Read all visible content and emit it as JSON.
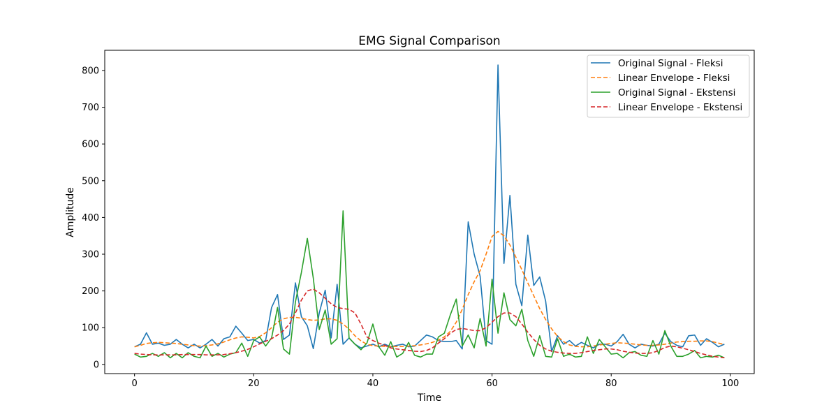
{
  "chart_data": {
    "type": "line",
    "title": "EMG Signal Comparison",
    "xlabel": "Time",
    "ylabel": "Amplitude",
    "xlim": [
      -5,
      104
    ],
    "ylim": [
      -25,
      855
    ],
    "xticks": [
      0,
      20,
      40,
      60,
      80,
      100
    ],
    "yticks": [
      0,
      100,
      200,
      300,
      400,
      500,
      600,
      700,
      800
    ],
    "grid": false,
    "legend_position": "top-right",
    "x": [
      0,
      1,
      2,
      3,
      4,
      5,
      6,
      7,
      8,
      9,
      10,
      11,
      12,
      13,
      14,
      15,
      16,
      17,
      18,
      19,
      20,
      21,
      22,
      23,
      24,
      25,
      26,
      27,
      28,
      29,
      30,
      31,
      32,
      33,
      34,
      35,
      36,
      37,
      38,
      39,
      40,
      41,
      42,
      43,
      44,
      45,
      46,
      47,
      48,
      49,
      50,
      51,
      52,
      53,
      54,
      55,
      56,
      57,
      58,
      59,
      60,
      61,
      62,
      63,
      64,
      65,
      66,
      67,
      68,
      69,
      70,
      71,
      72,
      73,
      74,
      75,
      76,
      77,
      78,
      79,
      80,
      81,
      82,
      83,
      84,
      85,
      86,
      87,
      88,
      89,
      90,
      91,
      92,
      93,
      94,
      95,
      96,
      97,
      98,
      99
    ],
    "series": [
      {
        "name": "Original Signal - Fleksi",
        "color": "#1f77b4",
        "style": "solid",
        "values": [
          48,
          55,
          86,
          55,
          58,
          52,
          55,
          68,
          55,
          45,
          55,
          45,
          55,
          68,
          50,
          70,
          75,
          104,
          85,
          65,
          68,
          58,
          65,
          155,
          190,
          68,
          80,
          222,
          130,
          105,
          43,
          140,
          202,
          72,
          218,
          55,
          72,
          55,
          45,
          50,
          55,
          48,
          55,
          48,
          52,
          55,
          48,
          50,
          65,
          80,
          75,
          65,
          62,
          62,
          65,
          42,
          388,
          300,
          240,
          65,
          55,
          815,
          275,
          460,
          218,
          160,
          352,
          215,
          238,
          172,
          35,
          78,
          55,
          65,
          50,
          60,
          52,
          45,
          55,
          55,
          50,
          62,
          82,
          55,
          45,
          55,
          52,
          50,
          55,
          85,
          62,
          52,
          48,
          78,
          80,
          52,
          70,
          60,
          48,
          55
        ]
      },
      {
        "name": "Linear Envelope - Fleksi",
        "color": "#ff7f0e",
        "style": "dashed",
        "values": [
          48,
          52,
          57,
          59,
          60,
          59,
          58,
          57,
          55,
          53,
          51,
          50,
          51,
          53,
          56,
          61,
          67,
          72,
          75,
          74,
          72,
          76,
          86,
          100,
          115,
          124,
          128,
          128,
          126,
          122,
          120,
          121,
          124,
          124,
          120,
          110,
          96,
          78,
          64,
          55,
          51,
          50,
          49,
          49,
          49,
          49,
          50,
          51,
          53,
          56,
          60,
          66,
          75,
          90,
          115,
          150,
          190,
          225,
          255,
          300,
          348,
          362,
          350,
          325,
          292,
          258,
          222,
          187,
          152,
          122,
          97,
          76,
          62,
          53,
          49,
          48,
          48,
          50,
          53,
          55,
          57,
          59,
          58,
          57,
          55,
          53,
          52,
          52,
          53,
          55,
          58,
          61,
          62,
          63,
          63,
          64,
          64,
          62,
          58,
          54
        ]
      },
      {
        "name": "Original Signal - Ekstensi",
        "color": "#2ca02c",
        "style": "solid",
        "values": [
          28,
          20,
          22,
          30,
          22,
          32,
          18,
          30,
          18,
          32,
          22,
          18,
          50,
          22,
          30,
          20,
          28,
          32,
          58,
          22,
          65,
          75,
          50,
          72,
          155,
          42,
          28,
          170,
          250,
          343,
          235,
          95,
          148,
          55,
          70,
          418,
          72,
          55,
          40,
          58,
          110,
          48,
          25,
          62,
          20,
          30,
          60,
          25,
          20,
          28,
          28,
          75,
          85,
          135,
          178,
          50,
          80,
          45,
          125,
          50,
          232,
          85,
          195,
          122,
          105,
          150,
          65,
          22,
          78,
          22,
          20,
          70,
          22,
          28,
          20,
          22,
          75,
          30,
          68,
          48,
          28,
          30,
          18,
          32,
          35,
          25,
          22,
          65,
          28,
          92,
          50,
          22,
          22,
          28,
          38,
          18,
          22,
          20,
          25,
          18
        ]
      },
      {
        "name": "Linear Envelope - Ekstensi",
        "color": "#d62728",
        "style": "dashed",
        "values": [
          30,
          28,
          27,
          26,
          26,
          26,
          26,
          26,
          27,
          27,
          27,
          27,
          26,
          26,
          26,
          27,
          29,
          32,
          36,
          41,
          48,
          56,
          63,
          70,
          80,
          92,
          110,
          140,
          175,
          200,
          205,
          195,
          180,
          165,
          155,
          152,
          150,
          140,
          110,
          75,
          65,
          58,
          52,
          45,
          42,
          40,
          38,
          36,
          35,
          38,
          45,
          58,
          70,
          85,
          95,
          98,
          95,
          92,
          92,
          100,
          115,
          130,
          140,
          140,
          130,
          110,
          88,
          68,
          52,
          42,
          36,
          33,
          31,
          30,
          30,
          32,
          35,
          38,
          40,
          42,
          42,
          40,
          36,
          33,
          31,
          30,
          30,
          32,
          38,
          46,
          50,
          48,
          44,
          40,
          35,
          30,
          26,
          22,
          20,
          18
        ]
      }
    ]
  }
}
